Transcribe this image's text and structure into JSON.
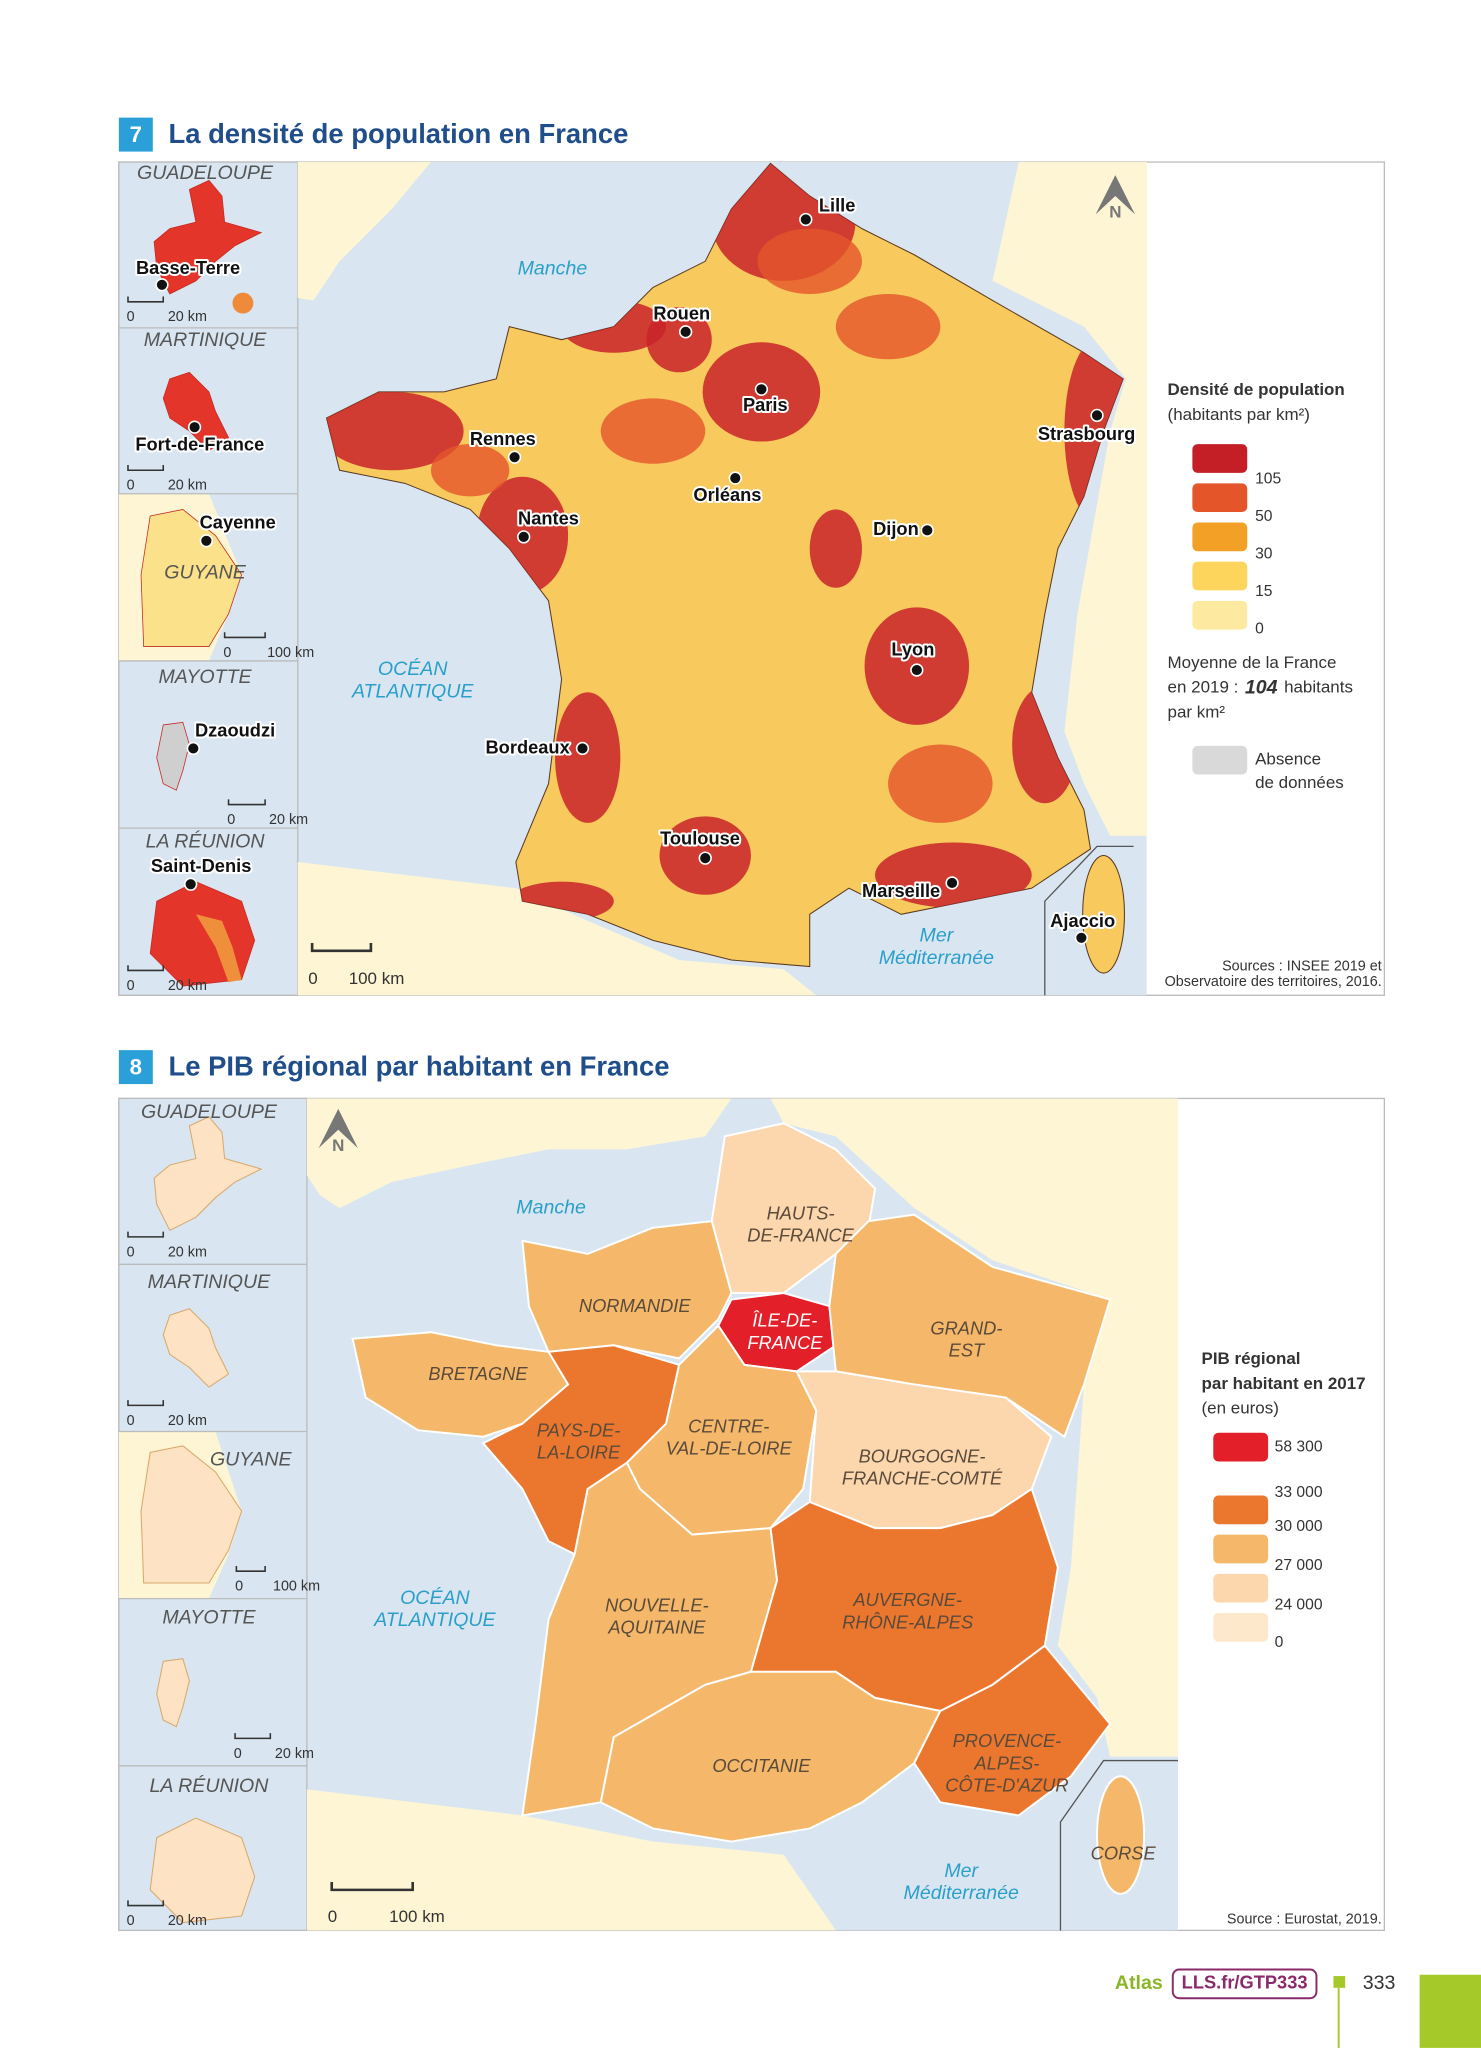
{
  "map7": {
    "number": "7",
    "title": "La densité de population en France",
    "insets": [
      {
        "name": "GUADELOUPE",
        "city": "Basse-Terre",
        "scale_start": "0",
        "scale_end": "20 km"
      },
      {
        "name": "MARTINIQUE",
        "city": "Fort-de-France",
        "scale_start": "0",
        "scale_end": "20 km"
      },
      {
        "name": "GUYANE",
        "city": "Cayenne",
        "scale_start": "0",
        "scale_end": "100 km"
      },
      {
        "name": "MAYOTTE",
        "city": "Dzaoudzi",
        "scale_start": "0",
        "scale_end": "20 km"
      },
      {
        "name": "LA RÉUNION",
        "city": "Saint-Denis",
        "scale_start": "0",
        "scale_end": "20 km"
      }
    ],
    "seas": {
      "manche": "Manche",
      "ocean": [
        "OCÉAN",
        "ATLANTIQUE"
      ],
      "mer": [
        "Mer",
        "Méditerranée"
      ]
    },
    "cities": [
      "Lille",
      "Rouen",
      "Paris",
      "Strasbourg",
      "Rennes",
      "Orléans",
      "Nantes",
      "Dijon",
      "Lyon",
      "Bordeaux",
      "Toulouse",
      "Marseille",
      "Ajaccio"
    ],
    "north": "N",
    "scale": {
      "start": "0",
      "end": "100 km"
    },
    "legend": {
      "title": "Densité de population",
      "subtitle": "(habitants par km²)",
      "colors": [
        "#c41f26",
        "#e4552a",
        "#f2a126",
        "#fdd55c",
        "#fdeaa0"
      ],
      "labels": [
        "105",
        "50",
        "30",
        "15",
        "0"
      ],
      "note": [
        "Moyenne de la France",
        "en 2019 :",
        "104",
        "habitants",
        "par km²"
      ],
      "no_data": [
        "Absence",
        "de données"
      ],
      "no_data_color": "#d9d9d9"
    },
    "sources": [
      "Sources : INSEE 2019 et",
      "Observatoire des territoires, 2016."
    ]
  },
  "map8": {
    "number": "8",
    "title": "Le PIB régional par habitant en France",
    "insets": [
      {
        "name": "GUADELOUPE",
        "scale_start": "0",
        "scale_end": "20 km"
      },
      {
        "name": "MARTINIQUE",
        "scale_start": "0",
        "scale_end": "20 km"
      },
      {
        "name": "GUYANE",
        "scale_start": "0",
        "scale_end": "100 km"
      },
      {
        "name": "MAYOTTE",
        "scale_start": "0",
        "scale_end": "20 km"
      },
      {
        "name": "LA RÉUNION",
        "scale_start": "0",
        "scale_end": "20 km"
      }
    ],
    "seas": {
      "manche": "Manche",
      "ocean": [
        "OCÉAN",
        "ATLANTIQUE"
      ],
      "mer": [
        "Mer",
        "Méditerranée"
      ]
    },
    "north": "N",
    "scale": {
      "start": "0",
      "end": "100 km"
    },
    "regions": [
      {
        "name": [
          "HAUTS-",
          "DE-FRANCE"
        ],
        "color": "#fcd7ae"
      },
      {
        "name": [
          "NORMANDIE"
        ],
        "color": "#f5b86a"
      },
      {
        "name": [
          "ÎLE-DE-",
          "FRANCE"
        ],
        "color": "#e3202a"
      },
      {
        "name": [
          "GRAND-",
          "EST"
        ],
        "color": "#f5b86a"
      },
      {
        "name": [
          "BRETAGNE"
        ],
        "color": "#f5b86a"
      },
      {
        "name": [
          "PAYS-DE-",
          "LA-LOIRE"
        ],
        "color": "#eb772f"
      },
      {
        "name": [
          "CENTRE-",
          "VAL-DE-LOIRE"
        ],
        "color": "#f5b86a"
      },
      {
        "name": [
          "BOURGOGNE-",
          "FRANCHE-COMTÉ"
        ],
        "color": "#fcd7ae"
      },
      {
        "name": [
          "NOUVELLE-",
          "AQUITAINE"
        ],
        "color": "#f5b86a"
      },
      {
        "name": [
          "AUVERGNE-",
          "RHÔNE-ALPES"
        ],
        "color": "#eb772f"
      },
      {
        "name": [
          "OCCITANIE"
        ],
        "color": "#f5b86a"
      },
      {
        "name": [
          "PROVENCE-",
          "ALPES-",
          "CÔTE-D'AZUR"
        ],
        "color": "#eb772f"
      },
      {
        "name": [
          "CORSE"
        ],
        "color": "#f5b86a"
      }
    ],
    "legend": {
      "title": [
        "PIB régional",
        "par habitant en 2017"
      ],
      "subtitle": "(en euros)",
      "colors": [
        "#e3202a",
        "#eb772f",
        "#f5b86a",
        "#fcd7ae",
        "#fde8cc"
      ],
      "labels": [
        "58 300",
        "33 000",
        "30 000",
        "27 000",
        "24 000",
        "0"
      ]
    },
    "sources": [
      "Source : Eurostat, 2019."
    ]
  },
  "footer": {
    "atlas": "Atlas",
    "link": "LLS.fr/GTP333",
    "page": "333"
  }
}
